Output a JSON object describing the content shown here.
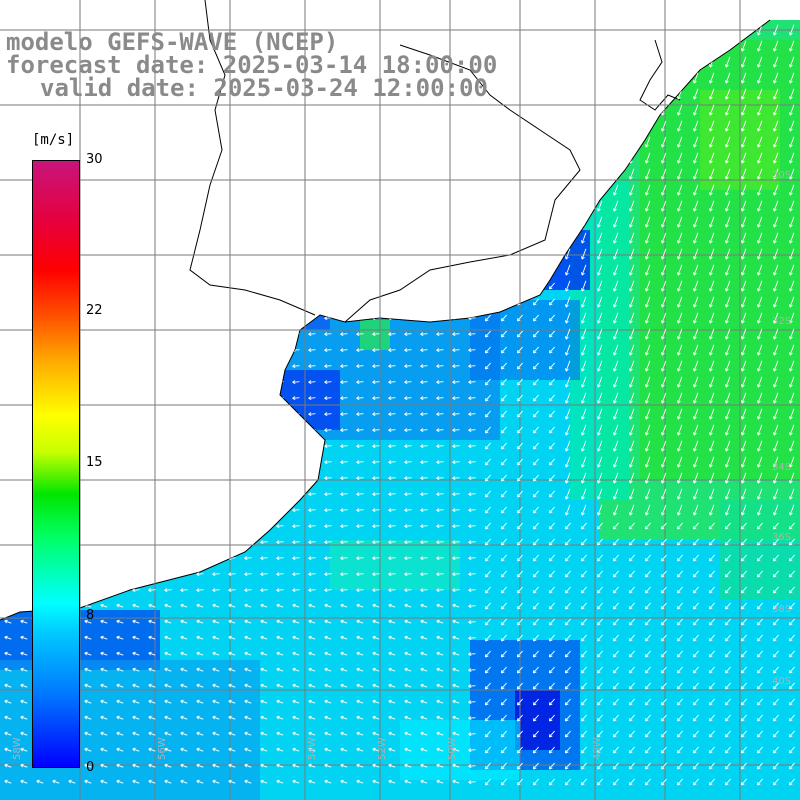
{
  "title": {
    "line1": "modelo GEFS-WAVE (NCEP)",
    "line2": "forecast date: 2025-03-14 18:00:00",
    "line3": "valid date: 2025-03-24 12:00:00"
  },
  "colorbar": {
    "unit": "[m/s]",
    "ticks": [
      "30",
      "22",
      "15",
      "8",
      "0"
    ],
    "range": [
      0,
      30
    ],
    "colors": [
      "#0000ff",
      "#0078ff",
      "#00c8ff",
      "#00ffff",
      "#00ff64",
      "#00e600",
      "#c8ff00",
      "#ffff00",
      "#ffaa00",
      "#ff5500",
      "#ff0000",
      "#e6003c",
      "#c8147d"
    ]
  },
  "map": {
    "land_color": "#ffffff",
    "coast_color": "#000000",
    "grid_color": "#7a7a7a",
    "arrow_color": "#ffffff",
    "arrow_direction": "mostly southwest / west",
    "lat_labels": [
      "30S",
      "32S",
      "34S",
      "36S",
      "38S",
      "40S"
    ],
    "lon_labels": [
      "58W",
      "56W",
      "54W",
      "52W",
      "50W",
      "48W"
    ]
  }
}
